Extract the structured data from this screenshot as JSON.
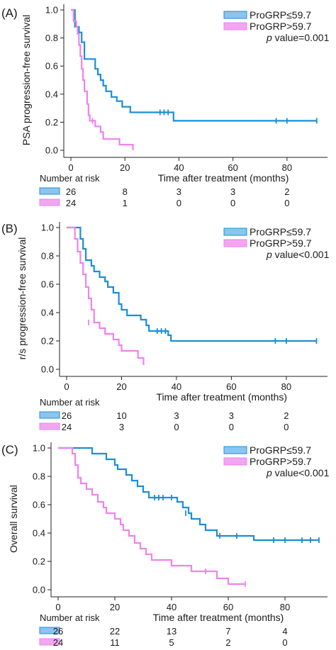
{
  "colors": {
    "low": "#1a8fd6",
    "high": "#ee82ee",
    "low_swatch": "#8cc4f0",
    "high_swatch": "#f2a6f2",
    "axis": "#222222"
  },
  "chart_data": [
    {
      "type": "line",
      "panel": "(A)",
      "ylabel": "PSA progression-free survival",
      "xlabel": "Time after treatment (months)",
      "xlim": [
        0,
        95
      ],
      "ylim": [
        0,
        1.0
      ],
      "xticks": [
        0,
        20,
        40,
        60,
        80
      ],
      "xticklabels": [
        "0",
        "20",
        "40",
        "60",
        "80"
      ],
      "yticks": [
        0,
        0.2,
        0.4,
        0.6,
        0.8,
        1.0
      ],
      "yticklabels": [
        "0.0",
        "0.2",
        "0.4",
        "0.6",
        "0.8",
        "1.0"
      ],
      "legend": {
        "position": "top-right",
        "p_label": "p",
        "p_text": " value=0.001"
      },
      "series": [
        {
          "name": "ProGRP≤59.7",
          "key": "low",
          "steps": [
            [
              0,
              1.0
            ],
            [
              1.5,
              0.88
            ],
            [
              3,
              0.84
            ],
            [
              4,
              0.77
            ],
            [
              5,
              0.65
            ],
            [
              9,
              0.58
            ],
            [
              10,
              0.54
            ],
            [
              11,
              0.5
            ],
            [
              12,
              0.46
            ],
            [
              13,
              0.42
            ],
            [
              15,
              0.38
            ],
            [
              17,
              0.35
            ],
            [
              19,
              0.31
            ],
            [
              22,
              0.27
            ],
            [
              38,
              0.21
            ],
            [
              91,
              0.21
            ]
          ],
          "censored": [
            [
              33,
              0.27
            ],
            [
              34.5,
              0.27
            ],
            [
              36,
              0.27
            ],
            [
              76,
              0.21
            ],
            [
              80,
              0.21
            ],
            [
              91,
              0.21
            ]
          ]
        },
        {
          "name": "ProGRP>59.7",
          "key": "high",
          "steps": [
            [
              0,
              1.0
            ],
            [
              1,
              0.92
            ],
            [
              2,
              0.88
            ],
            [
              2.5,
              0.83
            ],
            [
              3,
              0.75
            ],
            [
              3.5,
              0.67
            ],
            [
              4,
              0.58
            ],
            [
              4.5,
              0.5
            ],
            [
              5,
              0.42
            ],
            [
              6,
              0.33
            ],
            [
              6.5,
              0.25
            ],
            [
              7,
              0.21
            ],
            [
              9,
              0.17
            ],
            [
              11,
              0.13
            ],
            [
              12,
              0.08
            ],
            [
              18,
              0.04
            ],
            [
              23,
              0.0
            ]
          ],
          "censored": [
            [
              8,
              0.21
            ]
          ]
        }
      ],
      "risk": {
        "title": "Number at risk",
        "x": [
          0,
          20,
          40,
          60,
          80
        ],
        "rows": [
          {
            "key": "low",
            "counts": [
              "26",
              "8",
              "3",
              "3",
              "2"
            ]
          },
          {
            "key": "high",
            "counts": [
              "24",
              "1",
              "0",
              "0",
              "0"
            ]
          }
        ]
      }
    },
    {
      "type": "line",
      "panel": "(B)",
      "ylabel": "r/s progression-free survival",
      "xlabel": "Time after treatment (months)",
      "xlim": [
        0,
        95
      ],
      "ylim": [
        0,
        1.0
      ],
      "xticks": [
        0,
        20,
        40,
        60,
        80
      ],
      "xticklabels": [
        "0",
        "20",
        "40",
        "60",
        "80"
      ],
      "yticks": [
        0,
        0.2,
        0.4,
        0.6,
        0.8,
        1.0
      ],
      "yticklabels": [
        "0.0",
        "0.2",
        "0.4",
        "0.6",
        "0.8",
        "1.0"
      ],
      "legend": {
        "position": "top-right",
        "p_label": "p",
        "p_text": " value<0.001"
      },
      "series": [
        {
          "name": "ProGRP≤59.7",
          "key": "low",
          "steps": [
            [
              0,
              1.0
            ],
            [
              5,
              0.92
            ],
            [
              6,
              0.85
            ],
            [
              7,
              0.77
            ],
            [
              9,
              0.73
            ],
            [
              10,
              0.69
            ],
            [
              12,
              0.65
            ],
            [
              14,
              0.62
            ],
            [
              15,
              0.58
            ],
            [
              17,
              0.54
            ],
            [
              19,
              0.46
            ],
            [
              20,
              0.42
            ],
            [
              22,
              0.38
            ],
            [
              27,
              0.35
            ],
            [
              29,
              0.31
            ],
            [
              30,
              0.27
            ],
            [
              37,
              0.24
            ],
            [
              38,
              0.2
            ],
            [
              91,
              0.2
            ]
          ],
          "censored": [
            [
              33,
              0.27
            ],
            [
              34.5,
              0.27
            ],
            [
              36,
              0.27
            ],
            [
              76,
              0.2
            ],
            [
              80,
              0.2
            ],
            [
              91,
              0.2
            ]
          ]
        },
        {
          "name": "ProGRP>59.7",
          "key": "high",
          "steps": [
            [
              0,
              1.0
            ],
            [
              3,
              0.92
            ],
            [
              4,
              0.83
            ],
            [
              5,
              0.75
            ],
            [
              6,
              0.67
            ],
            [
              7,
              0.58
            ],
            [
              8,
              0.5
            ],
            [
              9,
              0.42
            ],
            [
              10,
              0.33
            ],
            [
              12,
              0.29
            ],
            [
              14,
              0.25
            ],
            [
              17,
              0.21
            ],
            [
              19,
              0.17
            ],
            [
              20,
              0.13
            ],
            [
              26,
              0.08
            ],
            [
              28,
              0.04
            ],
            [
              28,
              0.03
            ]
          ],
          "censored": [
            [
              8,
              0.33
            ]
          ]
        }
      ],
      "risk": {
        "title": "Number at risk",
        "x": [
          0,
          20,
          40,
          60,
          80
        ],
        "rows": [
          {
            "key": "low",
            "counts": [
              "26",
              "10",
              "3",
              "3",
              "2"
            ]
          },
          {
            "key": "high",
            "counts": [
              "24",
              "3",
              "0",
              "0",
              "0"
            ]
          }
        ]
      }
    },
    {
      "type": "line",
      "panel": "(C)",
      "ylabel": "Overall survival",
      "xlabel": "Time after treatment (months)",
      "xlim": [
        0,
        95
      ],
      "ylim": [
        0,
        1.0
      ],
      "xticks": [
        0,
        20,
        40,
        60,
        80
      ],
      "xticklabels": [
        "0",
        "20",
        "40",
        "60",
        "80"
      ],
      "yticks": [
        0,
        0.2,
        0.4,
        0.6,
        0.8,
        1.0
      ],
      "yticklabels": [
        "0.0",
        "0.2",
        "0.4",
        "0.6",
        "0.8",
        "1.0"
      ],
      "legend": {
        "position": "top-right",
        "p_label": "p",
        "p_text": " value<0.001"
      },
      "series": [
        {
          "name": "ProGRP≤59.7",
          "key": "low",
          "steps": [
            [
              0,
              1.0
            ],
            [
              12,
              0.96
            ],
            [
              17,
              0.92
            ],
            [
              20,
              0.88
            ],
            [
              21,
              0.85
            ],
            [
              24,
              0.81
            ],
            [
              26,
              0.77
            ],
            [
              28,
              0.73
            ],
            [
              30,
              0.69
            ],
            [
              32,
              0.65
            ],
            [
              42,
              0.62
            ],
            [
              44,
              0.58
            ],
            [
              46,
              0.54
            ],
            [
              47,
              0.5
            ],
            [
              50,
              0.46
            ],
            [
              52,
              0.42
            ],
            [
              56,
              0.38
            ],
            [
              69,
              0.35
            ],
            [
              92,
              0.35
            ]
          ],
          "censored": [
            [
              34,
              0.65
            ],
            [
              35.5,
              0.65
            ],
            [
              37,
              0.65
            ],
            [
              40,
              0.65
            ],
            [
              45,
              0.54
            ],
            [
              57,
              0.38
            ],
            [
              63,
              0.38
            ],
            [
              76,
              0.35
            ],
            [
              80,
              0.35
            ],
            [
              86,
              0.35
            ],
            [
              89,
              0.35
            ],
            [
              92,
              0.35
            ]
          ]
        },
        {
          "name": "ProGRP>59.7",
          "key": "high",
          "steps": [
            [
              0,
              1.0
            ],
            [
              5,
              0.96
            ],
            [
              6,
              0.88
            ],
            [
              7,
              0.79
            ],
            [
              8,
              0.75
            ],
            [
              10,
              0.71
            ],
            [
              12,
              0.67
            ],
            [
              14,
              0.62
            ],
            [
              16,
              0.58
            ],
            [
              17,
              0.54
            ],
            [
              20,
              0.5
            ],
            [
              22,
              0.46
            ],
            [
              23,
              0.42
            ],
            [
              25,
              0.38
            ],
            [
              27,
              0.33
            ],
            [
              29,
              0.29
            ],
            [
              31,
              0.25
            ],
            [
              33,
              0.21
            ],
            [
              40,
              0.17
            ],
            [
              47,
              0.13
            ],
            [
              51,
              0.13
            ],
            [
              56,
              0.08
            ],
            [
              60,
              0.04
            ],
            [
              66,
              0.04
            ]
          ],
          "censored": [
            [
              52,
              0.13
            ],
            [
              66,
              0.04
            ]
          ]
        }
      ],
      "risk": {
        "title": "Number at risk",
        "x": [
          0,
          20,
          40,
          60,
          80
        ],
        "rows": [
          {
            "key": "low",
            "counts": [
              "26",
              "22",
              "13",
              "7",
              "4"
            ]
          },
          {
            "key": "high",
            "counts": [
              "24",
              "11",
              "5",
              "2",
              "0"
            ]
          }
        ]
      }
    }
  ]
}
